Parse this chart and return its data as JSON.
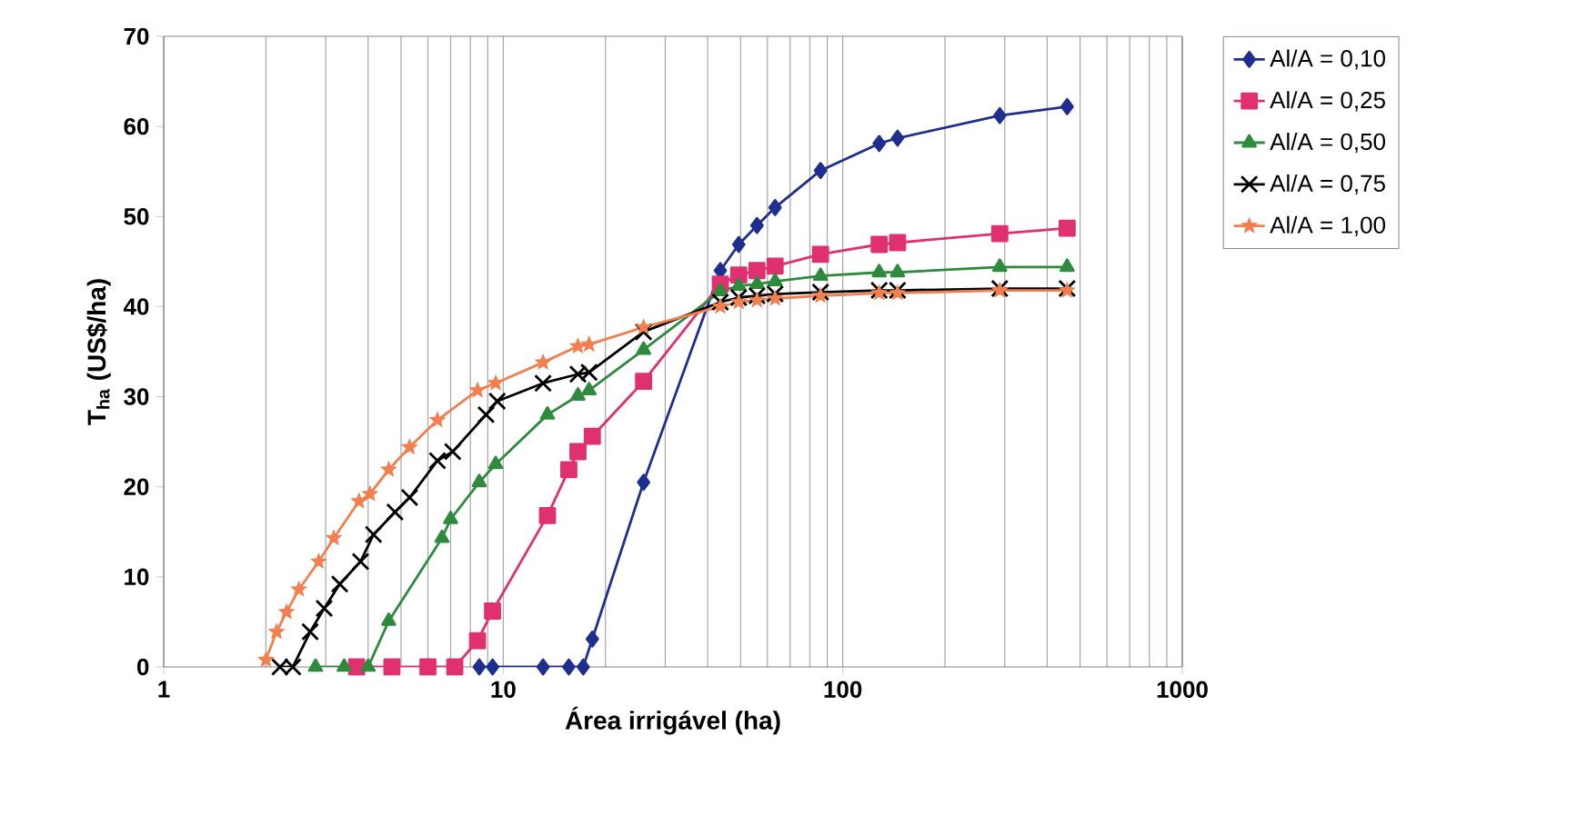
{
  "chart_data": {
    "type": "line",
    "xlabel": "Área irrigável (ha)",
    "ylabel": "T$_{ha}$ (US$/ha)",
    "log": "x",
    "xlim": [
      1,
      1000
    ],
    "xticks": [
      1,
      10,
      100,
      1000
    ],
    "ylim": [
      0,
      70
    ],
    "yticks": [
      0,
      10,
      20,
      30,
      40,
      50,
      60,
      70
    ],
    "grid": "x",
    "legend": "right",
    "series": [
      {
        "name": "Al/A = 0,10",
        "color": "#1f2f8f",
        "marker": "diamond",
        "x": [
          8.5,
          9.3,
          13.1,
          15.6,
          17.2,
          18.3,
          25.9,
          43.6,
          49.4,
          55.9,
          63.2,
          86,
          128,
          145,
          290,
          458
        ],
        "values": [
          0,
          0,
          0,
          0,
          0,
          3.1,
          20.5,
          44,
          46.9,
          49,
          51,
          55.1,
          58.1,
          58.7,
          61.2,
          62.2
        ]
      },
      {
        "name": "Al/A = 0,25",
        "color": "#e0306f",
        "marker": "square",
        "x": [
          3.7,
          4.7,
          6.0,
          7.2,
          8.4,
          9.3,
          13.5,
          15.6,
          16.6,
          18.3,
          25.9,
          43.6,
          49.4,
          55.9,
          63.2,
          86,
          128,
          145,
          290,
          458
        ],
        "values": [
          0,
          0,
          0,
          0,
          2.9,
          6.2,
          16.8,
          21.9,
          23.9,
          25.6,
          31.7,
          42.5,
          43.5,
          44,
          44.5,
          45.8,
          46.9,
          47.1,
          48.1,
          48.7
        ]
      },
      {
        "name": "Al/A = 0,50",
        "color": "#2e8b3e",
        "marker": "triangle",
        "x": [
          2.8,
          3.4,
          4.0,
          4.6,
          6.6,
          7.0,
          8.5,
          9.5,
          13.5,
          16.6,
          17.9,
          25.9,
          43.6,
          49.4,
          55.9,
          63.2,
          86,
          128,
          145,
          290,
          458
        ],
        "values": [
          0,
          0,
          0,
          5.1,
          14.3,
          16.4,
          20.5,
          22.5,
          28,
          30.1,
          30.7,
          35.2,
          41.7,
          42.3,
          42.5,
          42.8,
          43.4,
          43.8,
          43.8,
          44.4,
          44.4
        ]
      },
      {
        "name": "Al/A = 0,75",
        "color": "#000000",
        "marker": "cross",
        "x": [
          2.2,
          2.4,
          2.7,
          2.97,
          3.3,
          3.8,
          4.15,
          4.8,
          5.3,
          6.4,
          7.1,
          8.9,
          9.6,
          13.1,
          16.6,
          17.9,
          25.9,
          43.6,
          49.4,
          55.9,
          63.2,
          86,
          128,
          145,
          290,
          458
        ],
        "values": [
          0,
          0,
          3.9,
          6.5,
          9.2,
          11.7,
          14.7,
          17.2,
          18.8,
          22.9,
          23.9,
          28,
          29.5,
          31.5,
          32.5,
          32.7,
          37.2,
          40.5,
          41,
          41.2,
          41.4,
          41.6,
          41.8,
          41.8,
          42,
          42
        ]
      },
      {
        "name": "Al/A = 1,00",
        "color": "#f08050",
        "marker": "star",
        "x": [
          2.0,
          2.15,
          2.3,
          2.5,
          2.86,
          3.17,
          3.76,
          4.05,
          4.6,
          5.3,
          6.4,
          8.4,
          9.5,
          13.1,
          16.6,
          17.9,
          25.9,
          43.6,
          49.4,
          55.9,
          63.2,
          86,
          128,
          145,
          290,
          458
        ],
        "values": [
          0.8,
          3.9,
          6.1,
          8.6,
          11.7,
          14.3,
          18.4,
          19.2,
          21.9,
          24.4,
          27.4,
          30.7,
          31.5,
          33.8,
          35.6,
          35.8,
          37.7,
          40,
          40.5,
          40.7,
          40.9,
          41.2,
          41.5,
          41.5,
          41.8,
          41.8
        ]
      }
    ]
  }
}
